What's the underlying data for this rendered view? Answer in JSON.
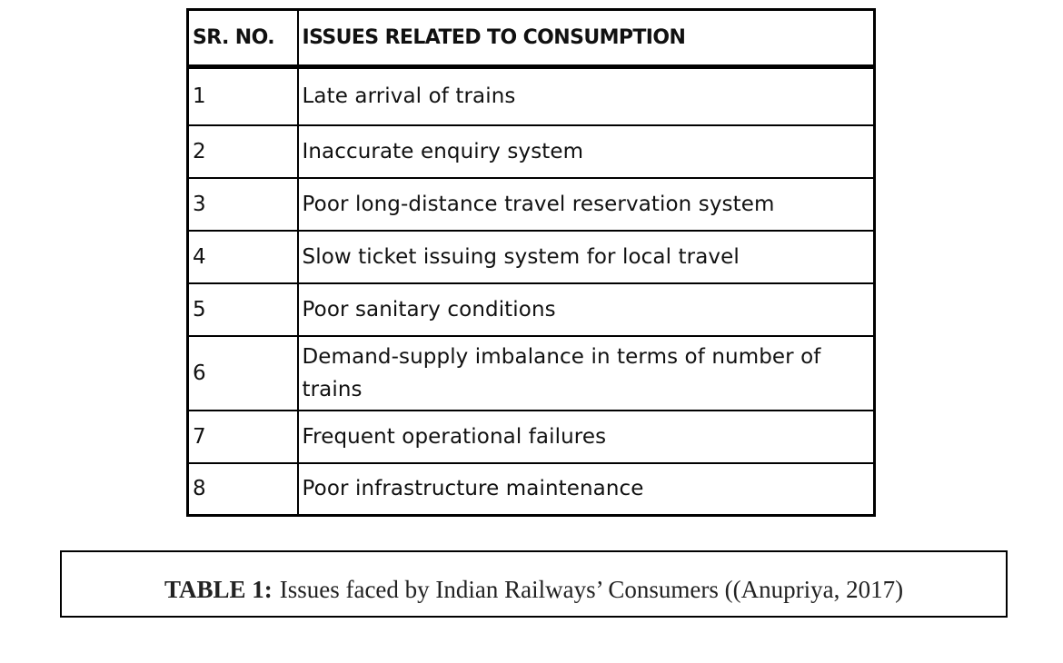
{
  "table": {
    "headers": {
      "sr_no": "SR. NO.",
      "issues": "ISSUES RELATED TO CONSUMPTION"
    },
    "rows": [
      {
        "no": "1",
        "issue": "Late arrival of trains"
      },
      {
        "no": "2",
        "issue": "Inaccurate enquiry system"
      },
      {
        "no": "3",
        "issue": "Poor long-distance travel reservation system"
      },
      {
        "no": "4",
        "issue": "Slow ticket issuing system for local travel"
      },
      {
        "no": "5",
        "issue": "Poor sanitary conditions"
      },
      {
        "no": "6",
        "issue": "Demand-supply imbalance in terms of number of trains"
      },
      {
        "no": "7",
        "issue": "Frequent operational failures"
      },
      {
        "no": "8",
        "issue": "Poor infrastructure maintenance"
      }
    ]
  },
  "caption": {
    "label": "TABLE 1:",
    "text": "Issues faced by Indian Railways’ Consumers ((Anupriya, 2017)"
  }
}
